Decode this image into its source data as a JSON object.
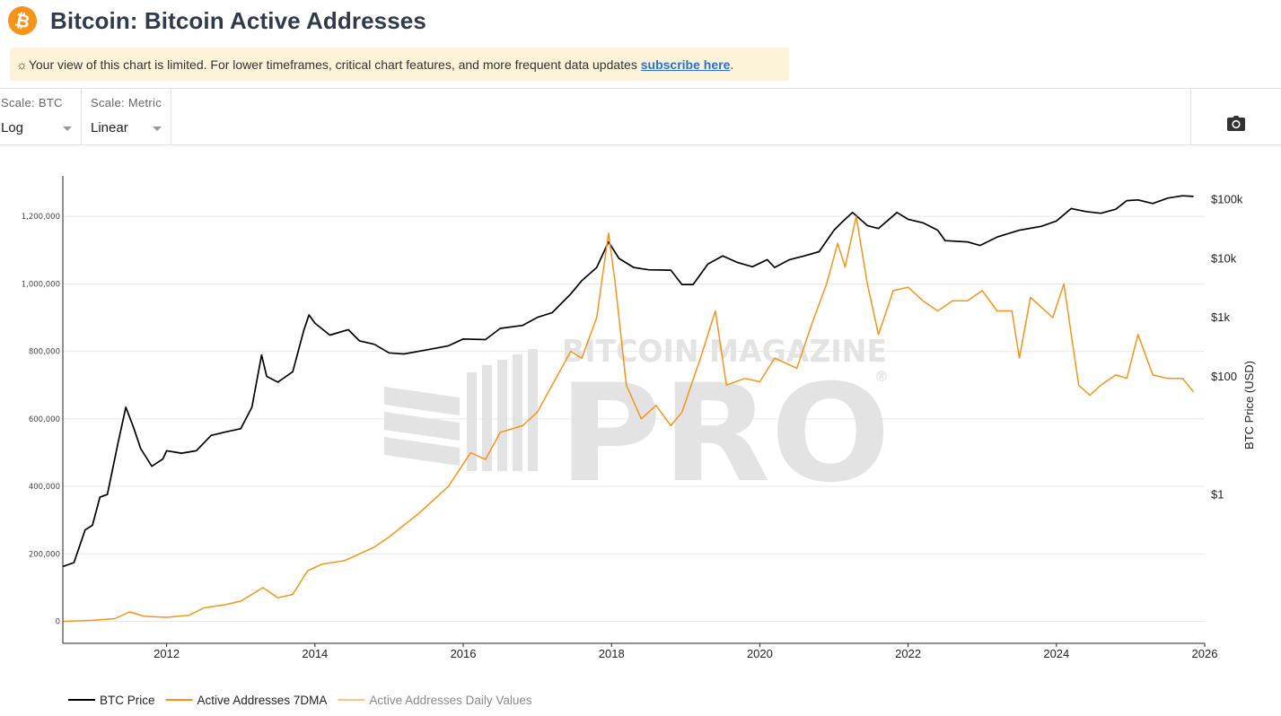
{
  "header": {
    "logo_symbol": "₿",
    "title": "Bitcoin: Bitcoin Active Addresses"
  },
  "banner": {
    "icon": "sun-icon",
    "text": "Your view of this chart is limited. For lower timeframes, critical chart features, and more frequent data updates ",
    "link_text": "subscribe here",
    "suffix": "."
  },
  "controls": {
    "scale_btc_label": "Scale: BTC",
    "scale_btc_value": "Log",
    "scale_metric_label": "Scale: Metric",
    "scale_metric_value": "Linear",
    "camera_icon": "camera-icon"
  },
  "watermark": {
    "line1": "BITCOIN MAGAZINE",
    "line2": "PRO",
    "mark": "®"
  },
  "colors": {
    "btc_price": "#000000",
    "active_7dma": "#f7931a",
    "active_daily": "#fbc67a",
    "banner_bg": "#fdf3d8",
    "link": "#2a6fdb",
    "grid": "#e8e8e8"
  },
  "chart_data": {
    "type": "line",
    "title": "Bitcoin: Bitcoin Active Addresses",
    "xlabel": "",
    "x_ticks": [
      "2012",
      "2014",
      "2016",
      "2018",
      "2020",
      "2022",
      "2024",
      "2026"
    ],
    "xlim": [
      2010.6,
      2026.0
    ],
    "y_left": {
      "label": "",
      "scale": "linear",
      "ticks": [
        "0",
        "200,000",
        "400,000",
        "600,000",
        "800,000",
        "1,000,000",
        "1,200,000"
      ],
      "tick_values": [
        0,
        200000,
        400000,
        600000,
        800000,
        1000000,
        1200000
      ],
      "range": [
        -65000,
        1320000
      ]
    },
    "y_right": {
      "label": "BTC Price (USD)",
      "scale": "log",
      "ticks": [
        "$1",
        "$100",
        "$1k",
        "$10k",
        "$100k"
      ],
      "tick_values": [
        1,
        100,
        1000,
        10000,
        100000
      ],
      "range": [
        0.003,
        250000
      ]
    },
    "legend": {
      "placement": "bottom-left"
    },
    "series": [
      {
        "name": "BTC Price",
        "axis": "right",
        "color": "#000000",
        "x": [
          2010.6,
          2010.75,
          2010.9,
          2011.0,
          2011.1,
          2011.2,
          2011.35,
          2011.45,
          2011.55,
          2011.65,
          2011.8,
          2011.95,
          2012.0,
          2012.2,
          2012.4,
          2012.6,
          2012.8,
          2013.0,
          2013.15,
          2013.28,
          2013.35,
          2013.5,
          2013.7,
          2013.85,
          2013.92,
          2014.0,
          2014.2,
          2014.45,
          2014.6,
          2014.8,
          2015.0,
          2015.2,
          2015.5,
          2015.8,
          2016.0,
          2016.3,
          2016.5,
          2016.8,
          2017.0,
          2017.2,
          2017.45,
          2017.6,
          2017.8,
          2017.96,
          2018.1,
          2018.3,
          2018.5,
          2018.8,
          2018.95,
          2019.1,
          2019.3,
          2019.5,
          2019.7,
          2019.9,
          2020.1,
          2020.2,
          2020.4,
          2020.6,
          2020.8,
          2021.0,
          2021.1,
          2021.25,
          2021.45,
          2021.6,
          2021.85,
          2022.0,
          2022.2,
          2022.4,
          2022.5,
          2022.8,
          2022.97,
          2023.2,
          2023.5,
          2023.8,
          2024.0,
          2024.2,
          2024.4,
          2024.6,
          2024.8,
          2024.95,
          2025.1,
          2025.3,
          2025.5,
          2025.7,
          2025.85
        ],
        "y": [
          0.06,
          0.07,
          0.25,
          0.3,
          0.9,
          1.0,
          8.0,
          30.0,
          14.0,
          6.0,
          3.0,
          4.0,
          5.5,
          5.0,
          5.5,
          10.0,
          11.5,
          13.0,
          30.0,
          230.0,
          100.0,
          80.0,
          120.0,
          600.0,
          1100.0,
          800.0,
          500.0,
          620.0,
          400.0,
          350.0,
          250.0,
          240.0,
          280.0,
          330.0,
          430.0,
          420.0,
          650.0,
          730.0,
          1000.0,
          1200.0,
          2500.0,
          4200.0,
          7000.0,
          19000.0,
          10000.0,
          7000.0,
          6400.0,
          6300.0,
          3600.0,
          3600.0,
          8000.0,
          11000.0,
          8500.0,
          7200.0,
          9500.0,
          7000.0,
          9500.0,
          11000.0,
          13000.0,
          30000.0,
          40000.0,
          60000.0,
          36000.0,
          32000.0,
          60000.0,
          46000.0,
          40000.0,
          30000.0,
          20000.0,
          19000.0,
          16500.0,
          23000.0,
          30000.0,
          35000.0,
          43000.0,
          70000.0,
          62000.0,
          58000.0,
          68000.0,
          95000.0,
          98000.0,
          85000.0,
          105000.0,
          115000.0,
          112000.0
        ]
      },
      {
        "name": "Active Addresses 7DMA",
        "axis": "left",
        "color": "#f7931a",
        "x": [
          2010.6,
          2011.0,
          2011.3,
          2011.5,
          2011.7,
          2012.0,
          2012.3,
          2012.5,
          2012.8,
          2013.0,
          2013.3,
          2013.5,
          2013.7,
          2013.9,
          2014.1,
          2014.4,
          2014.8,
          2015.0,
          2015.4,
          2015.8,
          2015.95,
          2016.1,
          2016.3,
          2016.5,
          2016.8,
          2017.0,
          2017.2,
          2017.45,
          2017.6,
          2017.8,
          2017.96,
          2018.05,
          2018.2,
          2018.4,
          2018.6,
          2018.8,
          2018.95,
          2019.2,
          2019.4,
          2019.55,
          2019.8,
          2020.0,
          2020.2,
          2020.5,
          2020.7,
          2020.9,
          2021.05,
          2021.15,
          2021.3,
          2021.45,
          2021.6,
          2021.8,
          2022.0,
          2022.2,
          2022.4,
          2022.6,
          2022.8,
          2023.0,
          2023.2,
          2023.4,
          2023.5,
          2023.65,
          2023.8,
          2023.95,
          2024.1,
          2024.3,
          2024.45,
          2024.6,
          2024.8,
          2024.95,
          2025.1,
          2025.3,
          2025.5,
          2025.7,
          2025.85
        ],
        "y": [
          0,
          3000,
          8000,
          28000,
          15000,
          12000,
          18000,
          40000,
          50000,
          60000,
          100000,
          70000,
          80000,
          150000,
          170000,
          180000,
          220000,
          250000,
          320000,
          400000,
          450000,
          500000,
          480000,
          560000,
          580000,
          620000,
          700000,
          800000,
          780000,
          900000,
          1150000,
          1000000,
          700000,
          600000,
          640000,
          580000,
          620000,
          780000,
          920000,
          700000,
          720000,
          710000,
          780000,
          750000,
          880000,
          1000000,
          1120000,
          1050000,
          1200000,
          1000000,
          850000,
          980000,
          990000,
          950000,
          920000,
          950000,
          950000,
          980000,
          920000,
          920000,
          780000,
          960000,
          930000,
          900000,
          1000000,
          700000,
          670000,
          700000,
          730000,
          720000,
          850000,
          730000,
          720000,
          720000,
          680000
        ]
      },
      {
        "name": "Active Addresses Daily Values",
        "axis": "left",
        "color": "#fbc67a",
        "x": [],
        "y": []
      }
    ]
  }
}
